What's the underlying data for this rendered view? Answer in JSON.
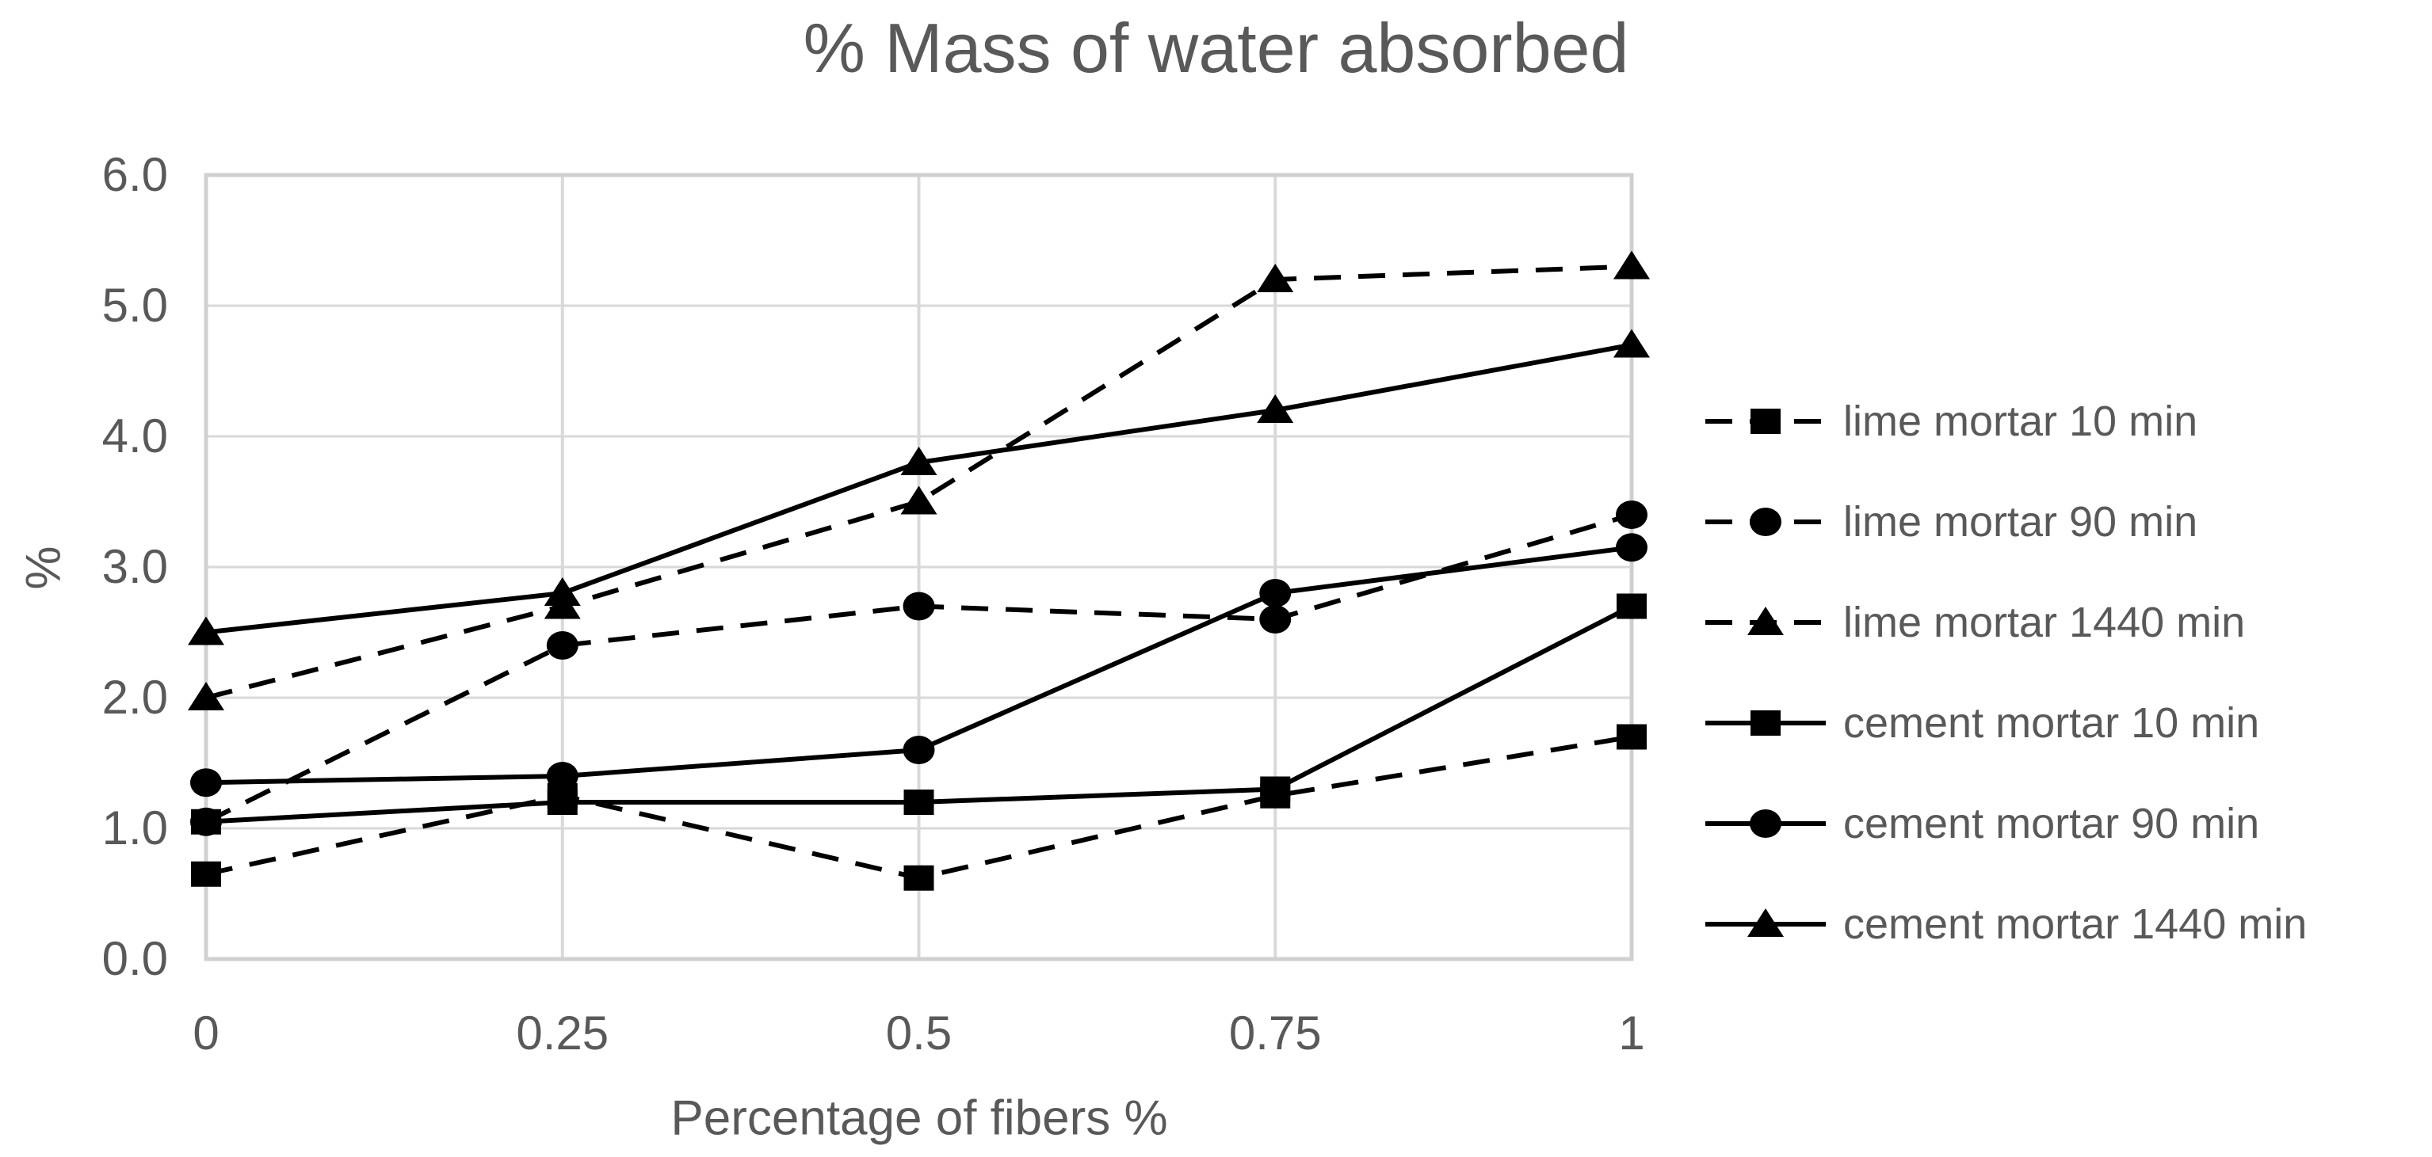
{
  "chart": {
    "colors": {
      "text": "#595959",
      "gridline": "#D9D9D9",
      "axis_border": "#D0D0D0",
      "series": "#000000",
      "background": "#FFFFFF"
    }
  },
  "chart_data": {
    "type": "line",
    "title": "% Mass of water absorbed",
    "xlabel": "Percentage of fibers %",
    "ylabel": "%",
    "x": [
      0,
      0.25,
      0.5,
      0.75,
      1
    ],
    "x_tick_labels": [
      "0",
      "0.25",
      "0.5",
      "0.75",
      "1"
    ],
    "y_ticks": [
      0,
      1,
      2,
      3,
      4,
      5,
      6
    ],
    "y_tick_labels": [
      "0.0",
      "1.0",
      "2.0",
      "3.0",
      "4.0",
      "5.0",
      "6.0"
    ],
    "ylim": [
      0,
      6
    ],
    "grid": true,
    "legend_position": "right",
    "series": [
      {
        "name": "lime mortar 10 min",
        "line": "dashed",
        "marker": "square",
        "values": [
          0.65,
          1.25,
          0.62,
          1.25,
          1.7
        ]
      },
      {
        "name": "lime mortar 90 min",
        "line": "dashed",
        "marker": "circle",
        "values": [
          1.05,
          2.4,
          2.7,
          2.6,
          3.4
        ]
      },
      {
        "name": "lime mortar 1440 min",
        "line": "dashed",
        "marker": "triangle",
        "values": [
          2.0,
          2.7,
          3.5,
          5.2,
          5.3
        ]
      },
      {
        "name": "cement mortar 10 min",
        "line": "solid",
        "marker": "square",
        "values": [
          1.05,
          1.2,
          1.2,
          1.3,
          2.7
        ]
      },
      {
        "name": "cement mortar 90 min",
        "line": "solid",
        "marker": "circle",
        "values": [
          1.35,
          1.4,
          1.6,
          2.8,
          3.15
        ]
      },
      {
        "name": "cement mortar 1440 min",
        "line": "solid",
        "marker": "triangle",
        "values": [
          2.5,
          2.8,
          3.8,
          4.2,
          4.7
        ]
      }
    ]
  }
}
